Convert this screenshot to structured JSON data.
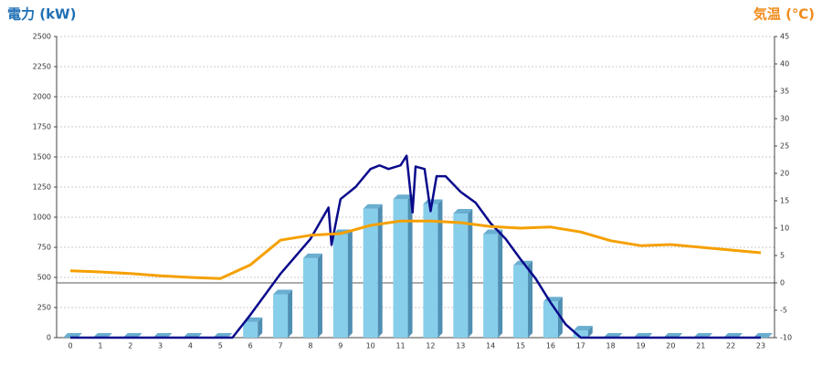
{
  "chart_data": {
    "type": "bar",
    "y_title": "電力 (kW)",
    "y2_title": "気温 (℃)",
    "categories": [
      "0",
      "1",
      "2",
      "3",
      "4",
      "5",
      "6",
      "7",
      "8",
      "9",
      "10",
      "11",
      "12",
      "13",
      "14",
      "15",
      "16",
      "17",
      "18",
      "19",
      "20",
      "21",
      "22",
      "23"
    ],
    "ylim": [
      0,
      2500
    ],
    "yticks": [
      0,
      250,
      500,
      750,
      1000,
      1250,
      1500,
      1750,
      2000,
      2250,
      2500
    ],
    "y2lim": [
      -10,
      45
    ],
    "y2ticks": [
      -10,
      -5,
      0,
      5,
      10,
      15,
      20,
      25,
      30,
      35,
      40,
      45
    ],
    "grid": true,
    "series": [
      {
        "type": "bar",
        "color": "#87ceeb",
        "values": [
          0,
          0,
          0,
          0,
          0,
          0,
          130,
          360,
          660,
          860,
          1070,
          1150,
          1110,
          1030,
          860,
          600,
          300,
          60,
          0,
          0,
          0,
          0,
          0,
          0
        ]
      },
      {
        "type": "line",
        "color": "#0a0a8c",
        "x": [
          0,
          5.4,
          6,
          7,
          8,
          8.6,
          8.7,
          9,
          9.5,
          10,
          10.3,
          10.6,
          11,
          11.2,
          11.4,
          11.5,
          11.8,
          12,
          12.2,
          12.5,
          13,
          13.5,
          14,
          14.5,
          15,
          15.5,
          16,
          16.5,
          17,
          23
        ],
        "values": [
          0,
          0,
          190,
          530,
          820,
          1080,
          770,
          1150,
          1250,
          1400,
          1430,
          1400,
          1430,
          1510,
          1040,
          1420,
          1400,
          1050,
          1340,
          1340,
          1210,
          1120,
          950,
          820,
          650,
          490,
          290,
          110,
          0,
          0
        ]
      },
      {
        "type": "line",
        "color": "#f5a000",
        "axis": "y2",
        "values": [
          2.2,
          2.0,
          1.7,
          1.3,
          1.0,
          0.8,
          3.3,
          7.8,
          8.7,
          9,
          10.5,
          11.3,
          11.3,
          11,
          10.3,
          10,
          10.2,
          9.3,
          7.7,
          6.8,
          7,
          6.5,
          6,
          5.5
        ]
      }
    ]
  }
}
